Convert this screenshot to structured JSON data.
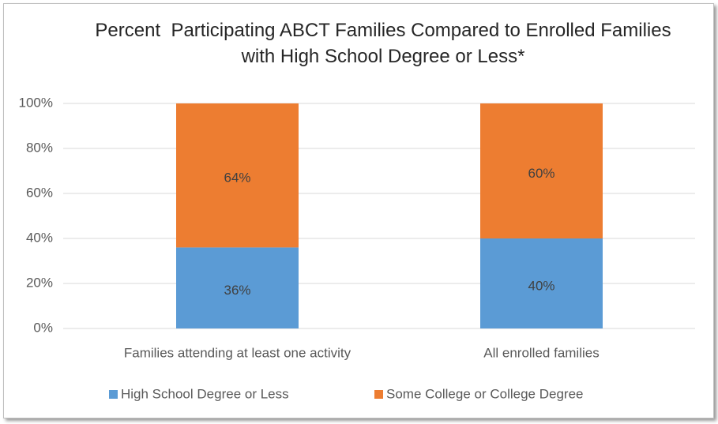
{
  "chart_data": {
    "type": "stacked_bar",
    "title": "Percent  Participating ABCT Families Compared to Enrolled Families with High School Degree or Less*",
    "categories": [
      "Families attending at least one activity",
      "All enrolled families"
    ],
    "series": [
      {
        "name": "High School Degree or Less",
        "color": "#5b9bd5",
        "values": [
          36,
          40
        ],
        "value_labels": [
          "36%",
          "40%"
        ]
      },
      {
        "name": "Some College or College Degree",
        "color": "#ed7d31",
        "values": [
          64,
          60
        ],
        "value_labels": [
          "64%",
          "60%"
        ]
      }
    ],
    "ylim": [
      0,
      100
    ],
    "yticks": [
      {
        "value": 0,
        "label": "0%"
      },
      {
        "value": 20,
        "label": "20%"
      },
      {
        "value": 40,
        "label": "40%"
      },
      {
        "value": 60,
        "label": "60%"
      },
      {
        "value": 80,
        "label": "80%"
      },
      {
        "value": 100,
        "label": "100%"
      }
    ],
    "grid": true,
    "legend": "bottom"
  }
}
